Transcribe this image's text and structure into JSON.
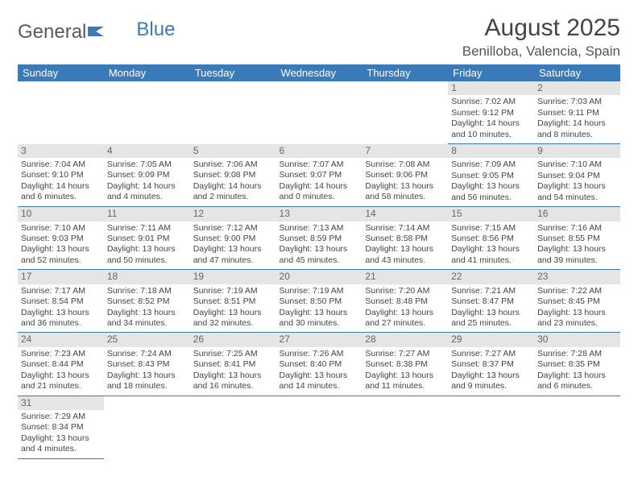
{
  "logo": {
    "text1": "General",
    "text2": "Blue"
  },
  "title": "August 2025",
  "location": "Benilloba, Valencia, Spain",
  "colors": {
    "header_bg": "#3a7ab8",
    "header_text": "#ffffff",
    "daynum_bg": "#e5e5e5",
    "cell_border": "#3a7ab8",
    "text": "#444444"
  },
  "weekdays": [
    "Sunday",
    "Monday",
    "Tuesday",
    "Wednesday",
    "Thursday",
    "Friday",
    "Saturday"
  ],
  "weeks": [
    [
      null,
      null,
      null,
      null,
      null,
      {
        "n": "1",
        "sr": "Sunrise: 7:02 AM",
        "ss": "Sunset: 9:12 PM",
        "d1": "Daylight: 14 hours",
        "d2": "and 10 minutes."
      },
      {
        "n": "2",
        "sr": "Sunrise: 7:03 AM",
        "ss": "Sunset: 9:11 PM",
        "d1": "Daylight: 14 hours",
        "d2": "and 8 minutes."
      }
    ],
    [
      {
        "n": "3",
        "sr": "Sunrise: 7:04 AM",
        "ss": "Sunset: 9:10 PM",
        "d1": "Daylight: 14 hours",
        "d2": "and 6 minutes."
      },
      {
        "n": "4",
        "sr": "Sunrise: 7:05 AM",
        "ss": "Sunset: 9:09 PM",
        "d1": "Daylight: 14 hours",
        "d2": "and 4 minutes."
      },
      {
        "n": "5",
        "sr": "Sunrise: 7:06 AM",
        "ss": "Sunset: 9:08 PM",
        "d1": "Daylight: 14 hours",
        "d2": "and 2 minutes."
      },
      {
        "n": "6",
        "sr": "Sunrise: 7:07 AM",
        "ss": "Sunset: 9:07 PM",
        "d1": "Daylight: 14 hours",
        "d2": "and 0 minutes."
      },
      {
        "n": "7",
        "sr": "Sunrise: 7:08 AM",
        "ss": "Sunset: 9:06 PM",
        "d1": "Daylight: 13 hours",
        "d2": "and 58 minutes."
      },
      {
        "n": "8",
        "sr": "Sunrise: 7:09 AM",
        "ss": "Sunset: 9:05 PM",
        "d1": "Daylight: 13 hours",
        "d2": "and 56 minutes."
      },
      {
        "n": "9",
        "sr": "Sunrise: 7:10 AM",
        "ss": "Sunset: 9:04 PM",
        "d1": "Daylight: 13 hours",
        "d2": "and 54 minutes."
      }
    ],
    [
      {
        "n": "10",
        "sr": "Sunrise: 7:10 AM",
        "ss": "Sunset: 9:03 PM",
        "d1": "Daylight: 13 hours",
        "d2": "and 52 minutes."
      },
      {
        "n": "11",
        "sr": "Sunrise: 7:11 AM",
        "ss": "Sunset: 9:01 PM",
        "d1": "Daylight: 13 hours",
        "d2": "and 50 minutes."
      },
      {
        "n": "12",
        "sr": "Sunrise: 7:12 AM",
        "ss": "Sunset: 9:00 PM",
        "d1": "Daylight: 13 hours",
        "d2": "and 47 minutes."
      },
      {
        "n": "13",
        "sr": "Sunrise: 7:13 AM",
        "ss": "Sunset: 8:59 PM",
        "d1": "Daylight: 13 hours",
        "d2": "and 45 minutes."
      },
      {
        "n": "14",
        "sr": "Sunrise: 7:14 AM",
        "ss": "Sunset: 8:58 PM",
        "d1": "Daylight: 13 hours",
        "d2": "and 43 minutes."
      },
      {
        "n": "15",
        "sr": "Sunrise: 7:15 AM",
        "ss": "Sunset: 8:56 PM",
        "d1": "Daylight: 13 hours",
        "d2": "and 41 minutes."
      },
      {
        "n": "16",
        "sr": "Sunrise: 7:16 AM",
        "ss": "Sunset: 8:55 PM",
        "d1": "Daylight: 13 hours",
        "d2": "and 39 minutes."
      }
    ],
    [
      {
        "n": "17",
        "sr": "Sunrise: 7:17 AM",
        "ss": "Sunset: 8:54 PM",
        "d1": "Daylight: 13 hours",
        "d2": "and 36 minutes."
      },
      {
        "n": "18",
        "sr": "Sunrise: 7:18 AM",
        "ss": "Sunset: 8:52 PM",
        "d1": "Daylight: 13 hours",
        "d2": "and 34 minutes."
      },
      {
        "n": "19",
        "sr": "Sunrise: 7:19 AM",
        "ss": "Sunset: 8:51 PM",
        "d1": "Daylight: 13 hours",
        "d2": "and 32 minutes."
      },
      {
        "n": "20",
        "sr": "Sunrise: 7:19 AM",
        "ss": "Sunset: 8:50 PM",
        "d1": "Daylight: 13 hours",
        "d2": "and 30 minutes."
      },
      {
        "n": "21",
        "sr": "Sunrise: 7:20 AM",
        "ss": "Sunset: 8:48 PM",
        "d1": "Daylight: 13 hours",
        "d2": "and 27 minutes."
      },
      {
        "n": "22",
        "sr": "Sunrise: 7:21 AM",
        "ss": "Sunset: 8:47 PM",
        "d1": "Daylight: 13 hours",
        "d2": "and 25 minutes."
      },
      {
        "n": "23",
        "sr": "Sunrise: 7:22 AM",
        "ss": "Sunset: 8:45 PM",
        "d1": "Daylight: 13 hours",
        "d2": "and 23 minutes."
      }
    ],
    [
      {
        "n": "24",
        "sr": "Sunrise: 7:23 AM",
        "ss": "Sunset: 8:44 PM",
        "d1": "Daylight: 13 hours",
        "d2": "and 21 minutes."
      },
      {
        "n": "25",
        "sr": "Sunrise: 7:24 AM",
        "ss": "Sunset: 8:43 PM",
        "d1": "Daylight: 13 hours",
        "d2": "and 18 minutes."
      },
      {
        "n": "26",
        "sr": "Sunrise: 7:25 AM",
        "ss": "Sunset: 8:41 PM",
        "d1": "Daylight: 13 hours",
        "d2": "and 16 minutes."
      },
      {
        "n": "27",
        "sr": "Sunrise: 7:26 AM",
        "ss": "Sunset: 8:40 PM",
        "d1": "Daylight: 13 hours",
        "d2": "and 14 minutes."
      },
      {
        "n": "28",
        "sr": "Sunrise: 7:27 AM",
        "ss": "Sunset: 8:38 PM",
        "d1": "Daylight: 13 hours",
        "d2": "and 11 minutes."
      },
      {
        "n": "29",
        "sr": "Sunrise: 7:27 AM",
        "ss": "Sunset: 8:37 PM",
        "d1": "Daylight: 13 hours",
        "d2": "and 9 minutes."
      },
      {
        "n": "30",
        "sr": "Sunrise: 7:28 AM",
        "ss": "Sunset: 8:35 PM",
        "d1": "Daylight: 13 hours",
        "d2": "and 6 minutes."
      }
    ],
    [
      {
        "n": "31",
        "sr": "Sunrise: 7:29 AM",
        "ss": "Sunset: 8:34 PM",
        "d1": "Daylight: 13 hours",
        "d2": "and 4 minutes."
      },
      null,
      null,
      null,
      null,
      null,
      null
    ]
  ]
}
